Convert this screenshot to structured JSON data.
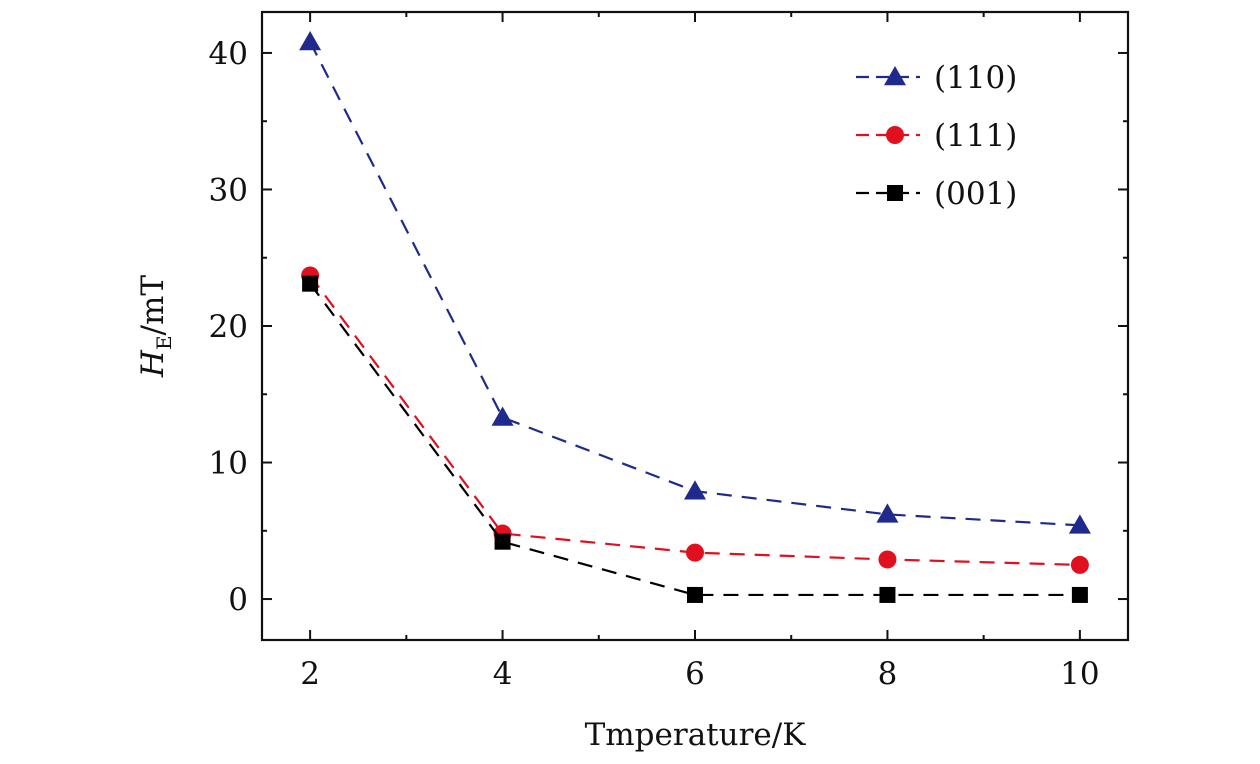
{
  "chart_data": {
    "type": "line",
    "title": "",
    "xlabel": "Tmperature/K",
    "ylabel": {
      "symbol": "H",
      "subscript": "E",
      "unit": "/mT"
    },
    "x": [
      2,
      4,
      6,
      8,
      10
    ],
    "xlim": [
      1.5,
      10.5
    ],
    "ylim": [
      -3,
      43
    ],
    "xticks": [
      2,
      4,
      6,
      8,
      10
    ],
    "xtick_labels": [
      "2",
      "4",
      "6",
      "8",
      "10"
    ],
    "yticks": [
      0,
      10,
      20,
      30,
      40
    ],
    "ytick_labels": [
      "0",
      "10",
      "20",
      "30",
      "40"
    ],
    "grid": false,
    "legend_position": "top-right",
    "series": [
      {
        "name": "(110)",
        "marker": "triangle",
        "color": "#1f2a8c",
        "values": [
          40.8,
          13.3,
          7.9,
          6.2,
          5.4
        ]
      },
      {
        "name": "(111)",
        "marker": "circle",
        "color": "#e0101e",
        "values": [
          23.7,
          4.8,
          3.4,
          2.9,
          2.5
        ]
      },
      {
        "name": "(001)",
        "marker": "square",
        "color": "#000000",
        "values": [
          23.1,
          4.2,
          0.3,
          0.3,
          0.3
        ]
      }
    ]
  }
}
